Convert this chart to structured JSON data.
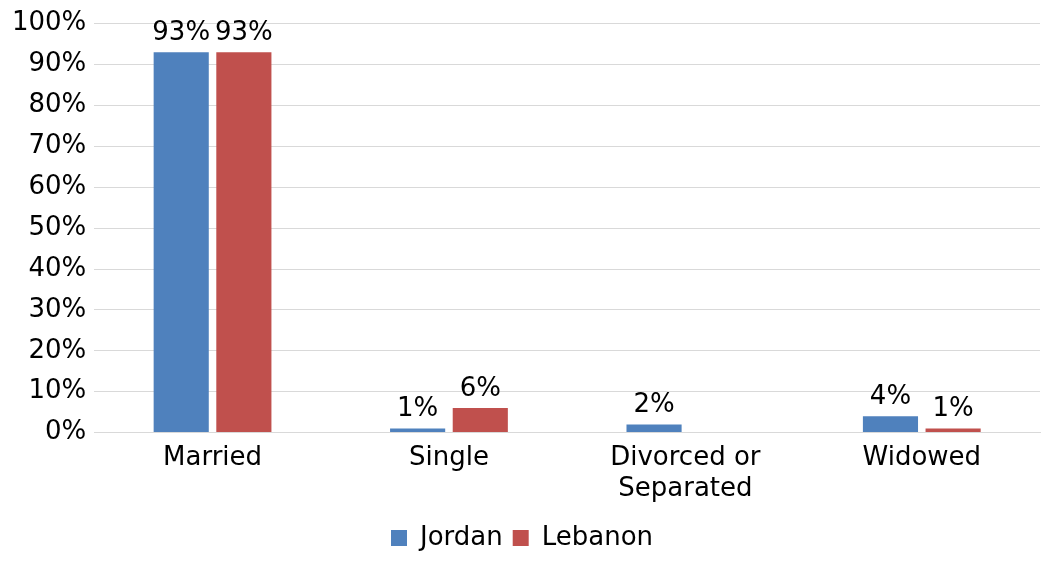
{
  "chart_data": {
    "type": "bar",
    "categories": [
      "Married",
      "Single",
      "Divorced or Separated",
      "Widowed"
    ],
    "series": [
      {
        "name": "Jordan",
        "color": "#4f81bd",
        "values": [
          93,
          1,
          2,
          4
        ],
        "value_labels": [
          "93%",
          "1%",
          "2%",
          "4%"
        ]
      },
      {
        "name": "Lebanon",
        "color": "#c0504d",
        "values": [
          93,
          6,
          null,
          1
        ],
        "value_labels": [
          "93%",
          "6%",
          null,
          "1%"
        ]
      }
    ],
    "ylim": [
      0,
      100
    ],
    "yticks": [
      {
        "value": 0,
        "label": "0%"
      },
      {
        "value": 10,
        "label": "10%"
      },
      {
        "value": 20,
        "label": "20%"
      },
      {
        "value": 30,
        "label": "30%"
      },
      {
        "value": 40,
        "label": "40%"
      },
      {
        "value": 50,
        "label": "50%"
      },
      {
        "value": 60,
        "label": "60%"
      },
      {
        "value": 70,
        "label": "70%"
      },
      {
        "value": 80,
        "label": "80%"
      },
      {
        "value": 90,
        "label": "90%"
      },
      {
        "value": 100,
        "label": "100%"
      }
    ],
    "grid": "y",
    "legend": "bottom"
  }
}
